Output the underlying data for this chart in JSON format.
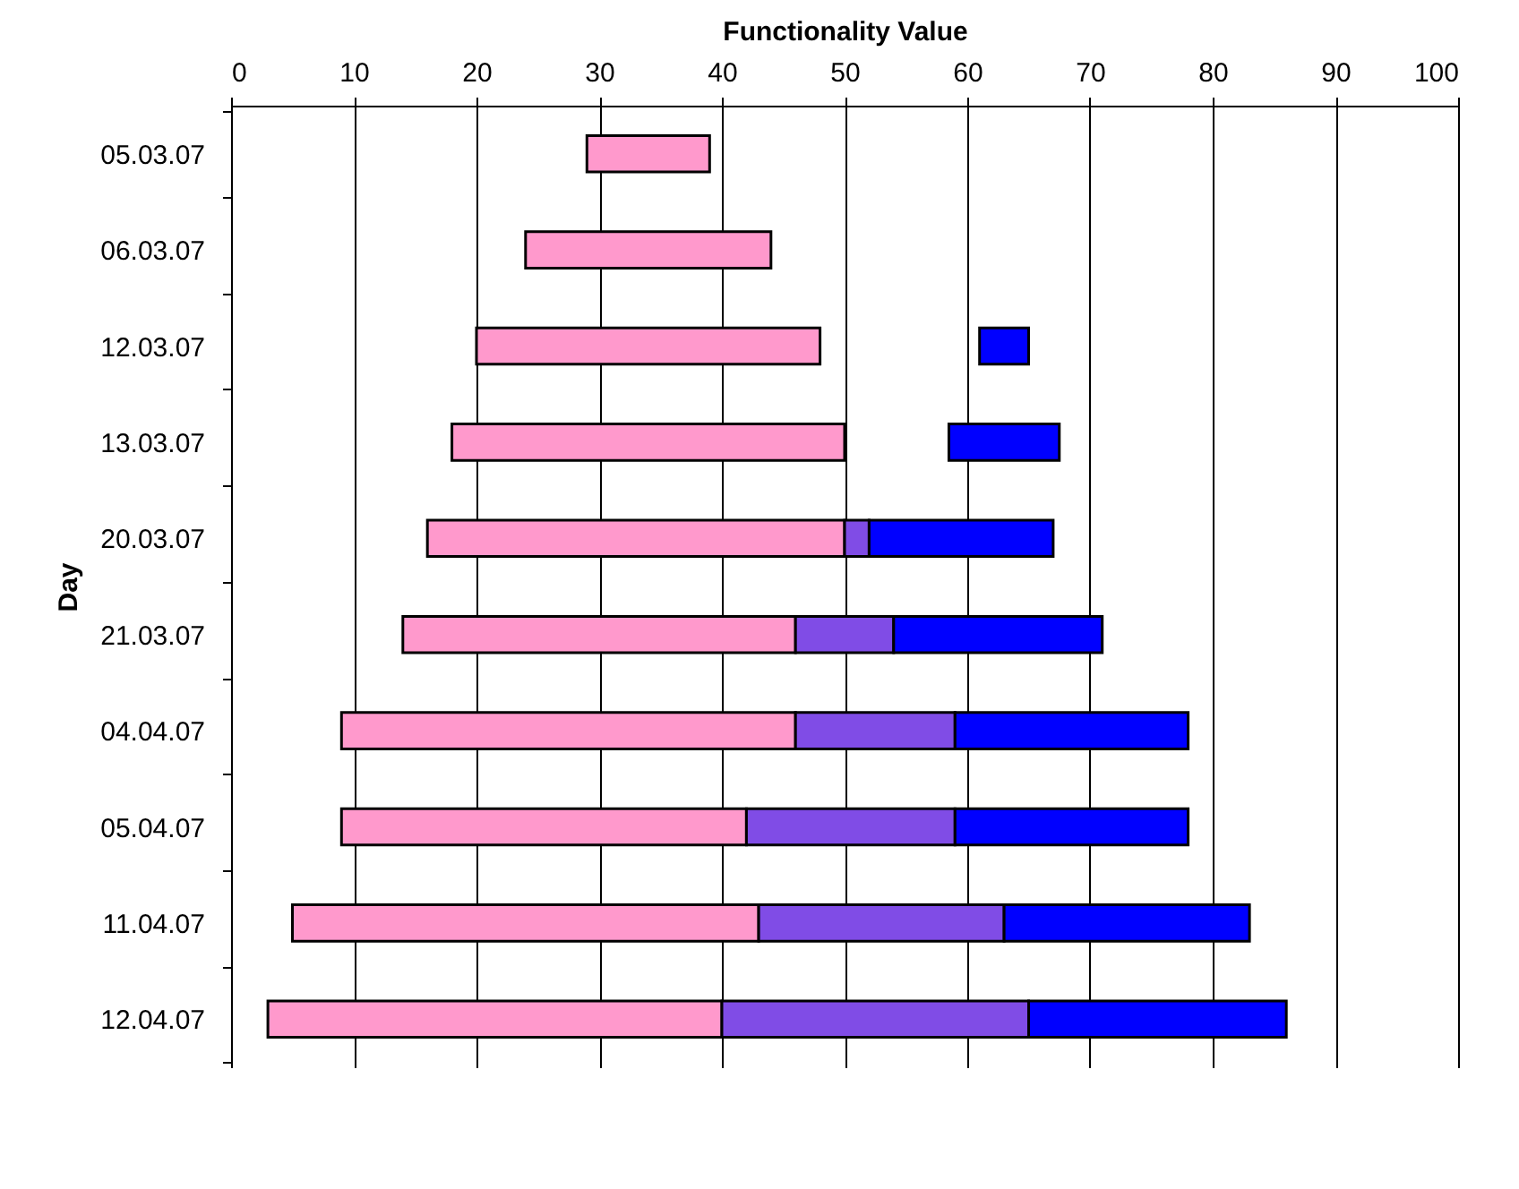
{
  "chart_data": {
    "type": "bar",
    "orientation": "horizontal",
    "xlabel": "Functionality Value",
    "ylabel": "Day",
    "categories": [
      "05.03.07",
      "06.03.07",
      "12.03.07",
      "13.03.07",
      "20.03.07",
      "21.03.07",
      "04.04.07",
      "05.04.07",
      "11.04.07",
      "12.04.07"
    ],
    "series": [
      {
        "color": "#ff99cc",
        "base": [
          29,
          24,
          20,
          18,
          16,
          14,
          9,
          9,
          5,
          3
        ],
        "values": [
          10,
          20,
          28,
          32,
          34,
          32,
          37,
          33,
          38,
          37
        ]
      },
      {
        "color": "#804ce6",
        "base": [
          null,
          null,
          null,
          null,
          50,
          46,
          46,
          42,
          43,
          40
        ],
        "values": [
          null,
          null,
          null,
          null,
          2,
          8,
          13,
          17,
          20,
          25
        ]
      },
      {
        "color": "#0000ff",
        "base": [
          null,
          null,
          61,
          58.5,
          52,
          54,
          59,
          59,
          63,
          65
        ],
        "values": [
          null,
          null,
          4,
          9,
          15,
          17,
          19,
          19,
          20,
          21
        ]
      }
    ],
    "xlim": [
      0,
      100
    ],
    "xticks": [
      0,
      10,
      20,
      30,
      40,
      50,
      60,
      70,
      80,
      90,
      100
    ],
    "grid": "x"
  }
}
